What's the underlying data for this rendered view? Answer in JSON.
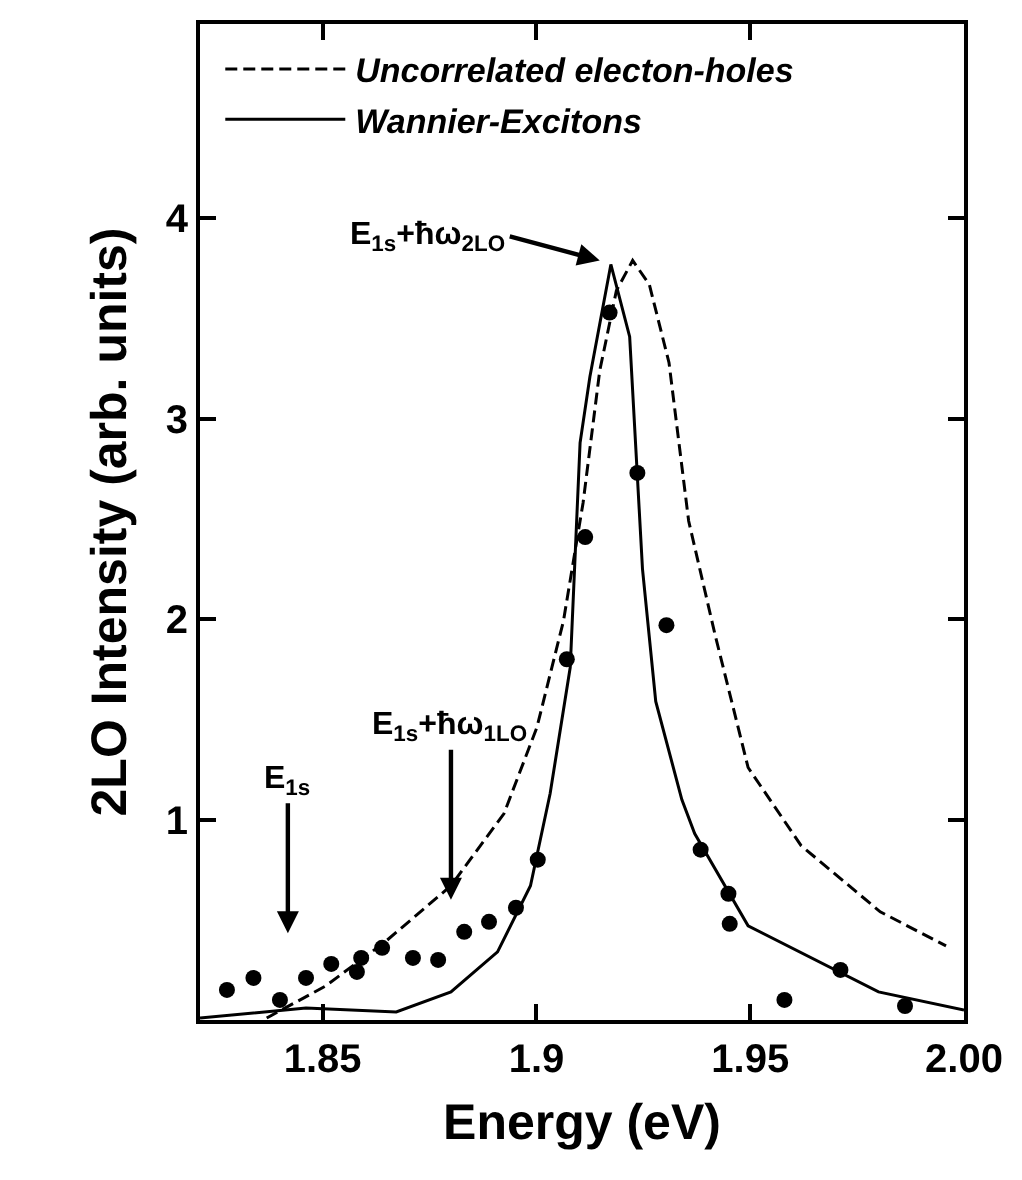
{
  "chart_data": {
    "type": "line",
    "xlabel": "Energy (eV)",
    "ylabel": "2LO Intensity (arb. units)",
    "xlim": [
      1.8213,
      2.0
    ],
    "ylim": [
      0,
      4.97
    ],
    "xticks": [
      1.85,
      1.9,
      1.95,
      {
        "value": 2.0,
        "label": "2.00"
      }
    ],
    "yticks": [
      1,
      2,
      3,
      4
    ],
    "grid": false,
    "legend": "top left",
    "series": [
      {
        "name": "Uncorrelated electon-holes",
        "color": "#000000",
        "line_style": "dashed",
        "marker": "none",
        "x": [
          1.8369,
          1.8507,
          1.8646,
          1.88,
          1.8924,
          1.9001,
          1.9063,
          1.9109,
          1.9148,
          1.9187,
          1.9225,
          1.9264,
          1.931,
          1.9356,
          1.9418,
          1.9495,
          1.9619,
          1.9804,
          1.9958
        ],
        "values": [
          0.01,
          0.17,
          0.39,
          0.67,
          1.03,
          1.46,
          1.99,
          2.58,
          3.24,
          3.64,
          3.79,
          3.67,
          3.28,
          2.49,
          1.92,
          1.26,
          0.87,
          0.54,
          0.37
        ]
      },
      {
        "name": "Wannier-Excitons",
        "color": "#000000",
        "line_style": "solid",
        "marker": "none",
        "x": [
          1.8213,
          1.8461,
          1.8672,
          1.88,
          1.8909,
          1.8986,
          1.9032,
          1.9079,
          1.9102,
          1.9125,
          1.9174,
          1.9218,
          1.9248,
          1.9279,
          1.934,
          1.937,
          1.9495,
          1.98,
          2.0
        ],
        "values": [
          0.01,
          0.06,
          0.04,
          0.14,
          0.34,
          0.67,
          1.13,
          1.76,
          2.88,
          3.21,
          3.77,
          3.41,
          2.25,
          1.59,
          1.1,
          0.93,
          0.47,
          0.14,
          0.05
        ]
      },
      {
        "type": "scatter",
        "color": "#000000",
        "marker": "circle",
        "x": [
          1.8276,
          1.8338,
          1.84,
          1.8461,
          1.852,
          1.858,
          1.859,
          1.8639,
          1.8711,
          1.877,
          1.8831,
          1.8889,
          1.8952,
          1.9003,
          1.9071,
          1.9114,
          1.9171,
          1.9236,
          1.9304,
          1.9384,
          1.9449,
          1.9452,
          1.958,
          1.9711,
          1.9862
        ],
        "values": [
          0.15,
          0.21,
          0.1,
          0.21,
          0.28,
          0.24,
          0.31,
          0.36,
          0.31,
          0.3,
          0.44,
          0.49,
          0.56,
          0.8,
          1.8,
          2.41,
          3.53,
          2.73,
          1.97,
          0.85,
          0.63,
          0.48,
          0.1,
          0.25,
          0.07
        ]
      }
    ],
    "annotations": [
      "E$_{1s}$",
      {
        "text": "E$_{1s}$+ħω$_{1LO}$",
        "x": 1.88,
        "y": 0.6
      },
      {
        "text": "E$_{1s}$+ħω$_{2LO}$",
        "x": 1.9148,
        "y": 3.79
      }
    ]
  }
}
